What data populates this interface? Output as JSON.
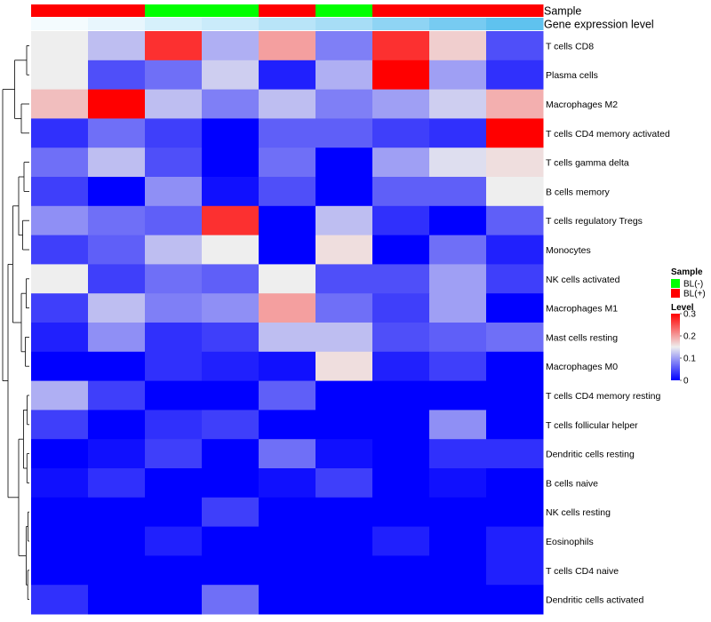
{
  "chart_data": {
    "type": "heatmap",
    "annotation_tracks": [
      {
        "name": "Sample",
        "values": [
          "BL(+)",
          "BL(+)",
          "BL(-)",
          "BL(-)",
          "BL(+)",
          "BL(-)",
          "BL(+)",
          "BL(+)",
          "BL(+)"
        ]
      },
      {
        "name": "Gene expression level",
        "values": [
          0.02,
          0.04,
          0.07,
          0.09,
          0.12,
          0.15,
          0.19,
          0.23,
          0.27
        ]
      }
    ],
    "rows": [
      "T cells CD8",
      "Plasma cells",
      "Macrophages M2",
      "T cells CD4 memory activated",
      "T cells gamma delta",
      "B cells memory",
      "T cells regulatory  Tregs",
      "Monocytes",
      "NK cells activated",
      "Macrophages M1",
      "Mast cells resting",
      "Macrophages M0",
      "T cells CD4 memory resting",
      "T cells follicular helper",
      "Dendritic cells resting",
      "B cells naive",
      "NK cells resting",
      "Eosinophils",
      "T cells CD4 naive",
      "Dendritic cells activated"
    ],
    "values": [
      [
        0.15,
        0.12,
        0.27,
        0.11,
        0.2,
        0.08,
        0.27,
        0.17,
        0.05
      ],
      [
        0.15,
        0.05,
        0.07,
        0.13,
        0.02,
        0.11,
        0.31,
        0.1,
        0.03
      ],
      [
        0.18,
        0.3,
        0.12,
        0.08,
        0.12,
        0.08,
        0.1,
        0.13,
        0.19
      ],
      [
        0.03,
        0.07,
        0.04,
        0.0,
        0.06,
        0.06,
        0.04,
        0.03,
        0.31
      ],
      [
        0.07,
        0.12,
        0.05,
        0.0,
        0.07,
        0.0,
        0.1,
        0.14,
        0.16
      ],
      [
        0.04,
        0.0,
        0.09,
        0.01,
        0.05,
        0.0,
        0.06,
        0.06,
        0.15
      ],
      [
        0.09,
        0.07,
        0.06,
        0.27,
        0.0,
        0.12,
        0.03,
        0.0,
        0.06
      ],
      [
        0.04,
        0.06,
        0.12,
        0.15,
        0.0,
        0.16,
        0.0,
        0.07,
        0.02
      ],
      [
        0.15,
        0.04,
        0.07,
        0.06,
        0.15,
        0.05,
        0.05,
        0.1,
        0.04
      ],
      [
        0.04,
        0.12,
        0.08,
        0.09,
        0.2,
        0.07,
        0.04,
        0.1,
        0.0
      ],
      [
        0.02,
        0.09,
        0.03,
        0.04,
        0.12,
        0.12,
        0.05,
        0.06,
        0.07
      ],
      [
        0.0,
        0.0,
        0.03,
        0.02,
        0.01,
        0.16,
        0.02,
        0.04,
        0.0
      ],
      [
        0.11,
        0.04,
        0.0,
        0.0,
        0.06,
        0.0,
        0.0,
        0.0,
        0.0
      ],
      [
        0.04,
        0.0,
        0.03,
        0.04,
        0.0,
        0.0,
        0.0,
        0.09,
        0.0
      ],
      [
        0.0,
        0.01,
        0.04,
        0.0,
        0.07,
        0.01,
        0.0,
        0.03,
        0.03
      ],
      [
        0.01,
        0.03,
        0.0,
        0.0,
        0.01,
        0.04,
        0.0,
        0.01,
        0.0
      ],
      [
        0.0,
        0.0,
        0.0,
        0.04,
        0.0,
        0.0,
        0.0,
        0.0,
        0.0
      ],
      [
        0.0,
        0.0,
        0.02,
        0.0,
        0.0,
        0.0,
        0.02,
        0.0,
        0.02
      ],
      [
        0.0,
        0.0,
        0.0,
        0.0,
        0.0,
        0.0,
        0.0,
        0.0,
        0.02
      ],
      [
        0.03,
        0.0,
        0.0,
        0.07,
        0.0,
        0.0,
        0.0,
        0.0,
        0.0
      ]
    ],
    "color_scale": {
      "min": 0,
      "max": 0.3,
      "stops": [
        {
          "value": 0,
          "color": "#0000ff"
        },
        {
          "value": 0.15,
          "color": "#eeeeee"
        },
        {
          "value": 0.3,
          "color": "#ff0000"
        }
      ]
    },
    "legend": {
      "sample": {
        "title": "Sample",
        "items": [
          {
            "label": "BL(-)",
            "color": "#00ff00"
          },
          {
            "label": "BL(+)",
            "color": "#ff0000"
          }
        ]
      },
      "level": {
        "title": "Level",
        "ticks": [
          "0.3",
          "0.2",
          "0.1",
          "0"
        ],
        "tick_values": [
          0.3,
          0.2,
          0.1,
          0.0
        ]
      },
      "placement": "right"
    },
    "annotation_colors": {
      "sample": {
        "BL(-)": "#00ff00",
        "BL(+)": "#ff0000"
      },
      "expression_low": "#f4fbfe",
      "expression_high": "#5fc2ef"
    },
    "row_dendrogram": true,
    "grid": false
  }
}
